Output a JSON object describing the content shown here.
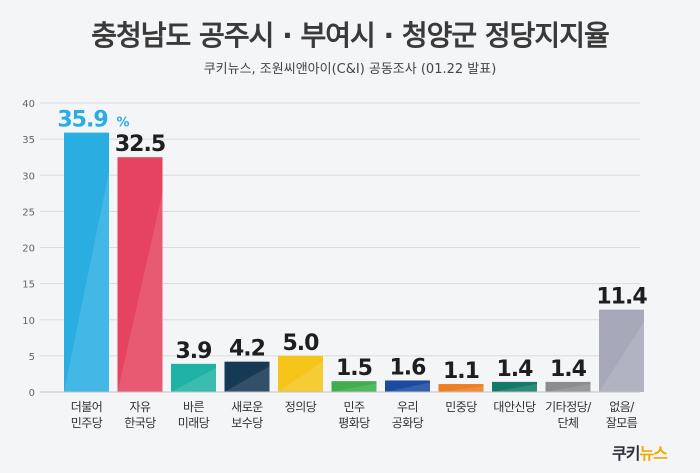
{
  "title": "충청남도 공주시 · 부여시 · 청양군 정당지지율",
  "subtitle": "쿠키뉴스, 조원씨앤아이(C&I) 공동조사 (01.22 발표)",
  "logo": {
    "part1": "쿠키",
    "part2": "뉴스"
  },
  "chart_data": {
    "type": "bar",
    "categories": [
      "더불어\n민주당",
      "자유\n한국당",
      "바른\n미래당",
      "새로운\n보수당",
      "정의당",
      "민주\n평화당",
      "우리\n공화당",
      "민중당",
      "대안신당",
      "기타정당/\n단체",
      "없음/\n잘모름"
    ],
    "values": [
      35.9,
      32.5,
      3.9,
      4.2,
      5.0,
      1.5,
      1.6,
      1.1,
      1.4,
      1.4,
      11.4
    ],
    "value_labels": [
      "35.9",
      "32.5",
      "3.9",
      "4.2",
      "5.0",
      "1.5",
      "1.6",
      "1.1",
      "1.4",
      "1.4",
      "11.4"
    ],
    "first_label_unit": "%",
    "colors": [
      "#2aaee2",
      "#e5435f",
      "#1fb3a6",
      "#163a55",
      "#f5c51a",
      "#3fae4c",
      "#1c4aa0",
      "#ef7d22",
      "#137a67",
      "#8d8d8d",
      "#a7a9b8"
    ],
    "yticks": [
      0,
      5,
      10,
      15,
      20,
      25,
      30,
      35,
      40
    ],
    "ylim": [
      0,
      40
    ],
    "xlabel": "",
    "ylabel": ""
  }
}
